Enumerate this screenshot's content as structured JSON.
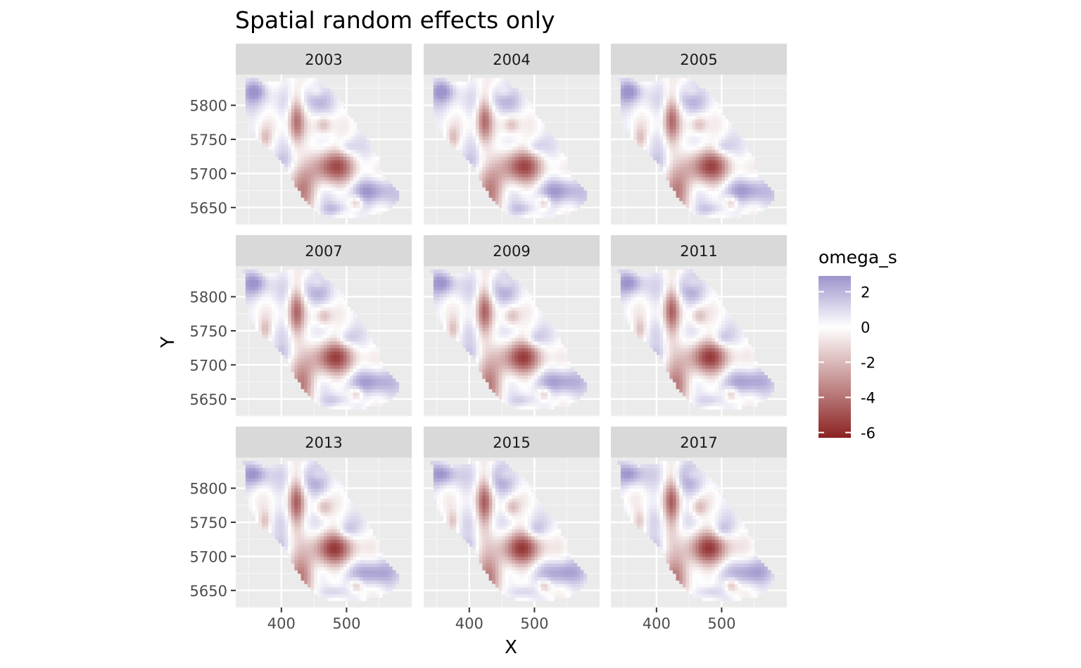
{
  "chart_data": {
    "type": "heatmap",
    "title": "Spatial random effects only",
    "xlabel": "X",
    "ylabel": "Y",
    "facets": [
      "2003",
      "2004",
      "2005",
      "2007",
      "2009",
      "2011",
      "2013",
      "2015",
      "2017"
    ],
    "facet_layout": {
      "rows": 3,
      "cols": 3
    },
    "xlim": [
      330,
      600
    ],
    "ylim": [
      5625,
      5845
    ],
    "x_ticks": [
      400,
      500
    ],
    "x_tick_labels": [
      "400",
      "500"
    ],
    "y_ticks": [
      5650,
      5700,
      5750,
      5800
    ],
    "y_tick_labels": [
      "5650",
      "5700",
      "5750",
      "5800"
    ],
    "grid": true,
    "legend": {
      "title": "omega_s",
      "placement": "right",
      "range": [
        -6.3,
        2.9
      ],
      "ticks": [
        2,
        0,
        -2,
        -4,
        -6
      ],
      "tick_labels": [
        "2",
        "0",
        "-2",
        "-4",
        "-6"
      ],
      "colors": {
        "high": "#9c94cc",
        "mid": "#ffffff",
        "low": "#8b2222"
      }
    },
    "region_outline": [
      [
        342,
        5838
      ],
      [
        362,
        5838
      ],
      [
        372,
        5832
      ],
      [
        382,
        5834
      ],
      [
        398,
        5836
      ],
      [
        412,
        5840
      ],
      [
        432,
        5842
      ],
      [
        452,
        5840
      ],
      [
        462,
        5830
      ],
      [
        478,
        5820
      ],
      [
        490,
        5808
      ],
      [
        500,
        5790
      ],
      [
        510,
        5776
      ],
      [
        522,
        5762
      ],
      [
        532,
        5752
      ],
      [
        540,
        5736
      ],
      [
        548,
        5722
      ],
      [
        552,
        5706
      ],
      [
        560,
        5690
      ],
      [
        572,
        5680
      ],
      [
        580,
        5670
      ],
      [
        576,
        5656
      ],
      [
        566,
        5648
      ],
      [
        550,
        5640
      ],
      [
        520,
        5636
      ],
      [
        480,
        5636
      ],
      [
        460,
        5640
      ],
      [
        448,
        5650
      ],
      [
        436,
        5662
      ],
      [
        426,
        5676
      ],
      [
        418,
        5690
      ],
      [
        410,
        5704
      ],
      [
        400,
        5716
      ],
      [
        390,
        5728
      ],
      [
        380,
        5736
      ],
      [
        370,
        5744
      ],
      [
        362,
        5752
      ],
      [
        354,
        5762
      ],
      [
        348,
        5778
      ],
      [
        346,
        5800
      ],
      [
        344,
        5820
      ],
      [
        342,
        5838
      ]
    ],
    "field_features": [
      {
        "x": 480,
        "y": 5712,
        "sx": 32,
        "sy": 26,
        "value": -5.2
      },
      {
        "x": 430,
        "y": 5672,
        "sx": 22,
        "sy": 30,
        "value": -4.0
      },
      {
        "x": 423,
        "y": 5780,
        "sx": 12,
        "sy": 40,
        "value": -4.2
      },
      {
        "x": 375,
        "y": 5752,
        "sx": 10,
        "sy": 16,
        "value": -2.0
      },
      {
        "x": 465,
        "y": 5772,
        "sx": 12,
        "sy": 14,
        "value": -2.2
      },
      {
        "x": 455,
        "y": 5820,
        "sx": 12,
        "sy": 10,
        "value": -1.2
      },
      {
        "x": 515,
        "y": 5658,
        "sx": 10,
        "sy": 10,
        "value": -2.4
      },
      {
        "x": 360,
        "y": 5822,
        "sx": 20,
        "sy": 16,
        "value": 2.4
      },
      {
        "x": 447,
        "y": 5812,
        "sx": 24,
        "sy": 24,
        "value": 1.4
      },
      {
        "x": 540,
        "y": 5676,
        "sx": 30,
        "sy": 18,
        "value": 2.2
      },
      {
        "x": 500,
        "y": 5738,
        "sx": 14,
        "sy": 12,
        "value": 1.6
      },
      {
        "x": 398,
        "y": 5716,
        "sx": 18,
        "sy": 14,
        "value": 1.2
      },
      {
        "x": 482,
        "y": 5648,
        "sx": 20,
        "sy": 10,
        "value": 1.6
      }
    ]
  }
}
